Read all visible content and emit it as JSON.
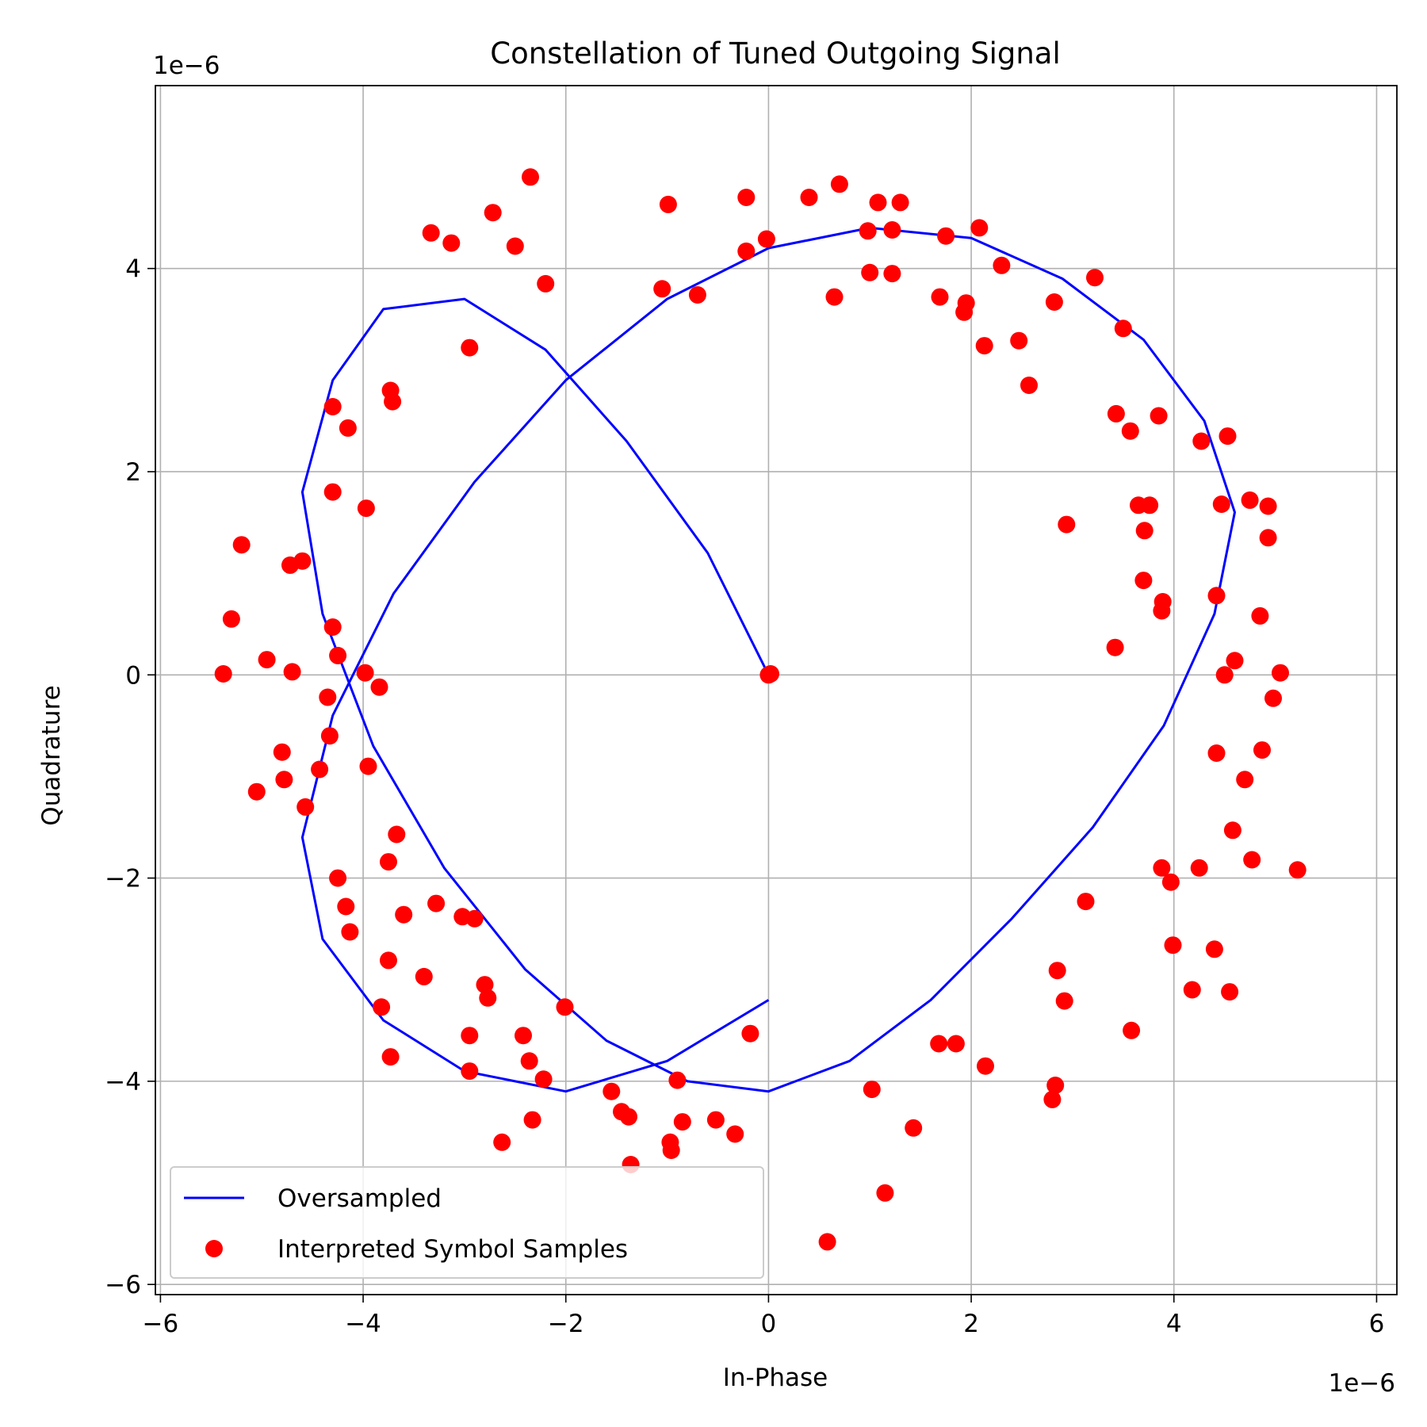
{
  "chart_data": {
    "type": "line",
    "title": "Constellation of Tuned Outgoing Signal",
    "xlabel": "In-Phase",
    "ylabel": "Quadrature",
    "x_scale_label": "1e−6",
    "y_scale_label": "1e−6",
    "xlim": [
      -6.05,
      6.2
    ],
    "ylim": [
      -6.1,
      5.8
    ],
    "x_ticks": [
      -6,
      -4,
      -2,
      0,
      2,
      4,
      6
    ],
    "x_tick_labels": [
      "−6",
      "−4",
      "−2",
      "0",
      "2",
      "4",
      "6"
    ],
    "y_ticks": [
      -6,
      -4,
      -2,
      0,
      2,
      4
    ],
    "y_tick_labels": [
      "−6",
      "−4",
      "−2",
      "0",
      "2",
      "4"
    ],
    "grid": true,
    "legend": {
      "placement": "lower-left"
    },
    "series": [
      {
        "name": "Oversampled",
        "style": "line",
        "color": "#0000ff",
        "note_units": "x and y in units of 1e-6",
        "x": [
          0.0,
          -0.6,
          -1.4,
          -2.2,
          -3.0,
          -3.8,
          -4.3,
          -4.6,
          -4.4,
          -3.9,
          -3.2,
          -2.4,
          -1.6,
          -0.8,
          0.0,
          0.8,
          1.6,
          2.4,
          3.2,
          3.9,
          4.4,
          4.6,
          4.3,
          3.7,
          2.9,
          2.0,
          1.0,
          0.0,
          -1.0,
          -2.0,
          -2.9,
          -3.7,
          -4.3,
          -4.6,
          -4.4,
          -3.8,
          -3.0,
          -2.0,
          -1.0,
          0.0
        ],
        "y": [
          0.0,
          1.2,
          2.3,
          3.2,
          3.7,
          3.6,
          2.9,
          1.8,
          0.6,
          -0.7,
          -1.9,
          -2.9,
          -3.6,
          -4.0,
          -4.1,
          -3.8,
          -3.2,
          -2.4,
          -1.5,
          -0.5,
          0.6,
          1.6,
          2.5,
          3.3,
          3.9,
          4.3,
          4.4,
          4.2,
          3.7,
          2.9,
          1.9,
          0.8,
          -0.4,
          -1.6,
          -2.6,
          -3.4,
          -3.9,
          -4.1,
          -3.8,
          -3.2
        ]
      },
      {
        "name": "Interpreted Symbol Samples",
        "style": "scatter",
        "color": "#ff0000",
        "note_units": "x and y in units of 1e-6",
        "points": [
          [
            -2.35,
            4.9
          ],
          [
            -2.72,
            4.55
          ],
          [
            -3.33,
            4.35
          ],
          [
            -3.13,
            4.25
          ],
          [
            -2.5,
            4.22
          ],
          [
            -2.2,
            3.85
          ],
          [
            -0.99,
            4.63
          ],
          [
            -0.22,
            4.7
          ],
          [
            0.4,
            4.7
          ],
          [
            0.7,
            4.83
          ],
          [
            1.08,
            4.65
          ],
          [
            1.3,
            4.65
          ],
          [
            0.98,
            4.37
          ],
          [
            1.22,
            4.38
          ],
          [
            1.75,
            4.32
          ],
          [
            2.08,
            4.4
          ],
          [
            -0.22,
            4.17
          ],
          [
            -0.02,
            4.29
          ],
          [
            1.0,
            3.96
          ],
          [
            1.22,
            3.95
          ],
          [
            2.3,
            4.03
          ],
          [
            -1.05,
            3.8
          ],
          [
            -0.7,
            3.74
          ],
          [
            0.65,
            3.72
          ],
          [
            1.69,
            3.72
          ],
          [
            1.95,
            3.66
          ],
          [
            1.93,
            3.57
          ],
          [
            2.82,
            3.67
          ],
          [
            3.22,
            3.91
          ],
          [
            3.5,
            3.41
          ],
          [
            -2.95,
            3.22
          ],
          [
            2.13,
            3.24
          ],
          [
            2.47,
            3.29
          ],
          [
            2.57,
            2.85
          ],
          [
            3.43,
            2.57
          ],
          [
            3.57,
            2.4
          ],
          [
            3.85,
            2.55
          ],
          [
            4.27,
            2.3
          ],
          [
            4.53,
            2.35
          ],
          [
            -4.3,
            2.64
          ],
          [
            -3.73,
            2.8
          ],
          [
            -3.71,
            2.69
          ],
          [
            -4.15,
            2.43
          ],
          [
            -4.3,
            1.8
          ],
          [
            -3.97,
            1.64
          ],
          [
            -5.2,
            1.28
          ],
          [
            -4.72,
            1.08
          ],
          [
            -4.6,
            1.12
          ],
          [
            2.94,
            1.48
          ],
          [
            3.65,
            1.67
          ],
          [
            3.76,
            1.67
          ],
          [
            3.71,
            1.42
          ],
          [
            4.47,
            1.68
          ],
          [
            4.75,
            1.72
          ],
          [
            4.93,
            1.66
          ],
          [
            4.93,
            1.35
          ],
          [
            3.7,
            0.93
          ],
          [
            3.89,
            0.72
          ],
          [
            3.88,
            0.63
          ],
          [
            4.42,
            0.78
          ],
          [
            4.85,
            0.58
          ],
          [
            -5.3,
            0.55
          ],
          [
            -4.3,
            0.47
          ],
          [
            -4.95,
            0.15
          ],
          [
            -4.25,
            0.19
          ],
          [
            -5.38,
            0.01
          ],
          [
            -4.7,
            0.03
          ],
          [
            -3.98,
            0.02
          ],
          [
            -3.84,
            -0.12
          ],
          [
            -4.35,
            -0.22
          ],
          [
            0.0,
            0.0
          ],
          [
            0.02,
            0.01
          ],
          [
            3.42,
            0.27
          ],
          [
            4.6,
            0.14
          ],
          [
            4.5,
            0.0
          ],
          [
            5.05,
            0.02
          ],
          [
            4.98,
            -0.23
          ],
          [
            -4.33,
            -0.6
          ],
          [
            -4.8,
            -0.76
          ],
          [
            -4.43,
            -0.93
          ],
          [
            -3.95,
            -0.9
          ],
          [
            -4.78,
            -1.03
          ],
          [
            -5.05,
            -1.15
          ],
          [
            -4.57,
            -1.3
          ],
          [
            4.42,
            -0.77
          ],
          [
            4.87,
            -0.74
          ],
          [
            4.7,
            -1.03
          ],
          [
            4.58,
            -1.53
          ],
          [
            -3.67,
            -1.57
          ],
          [
            -3.75,
            -1.84
          ],
          [
            -4.25,
            -2.0
          ],
          [
            -4.17,
            -2.28
          ],
          [
            -4.13,
            -2.53
          ],
          [
            -3.6,
            -2.36
          ],
          [
            -3.28,
            -2.25
          ],
          [
            -3.02,
            -2.38
          ],
          [
            -2.9,
            -2.4
          ],
          [
            3.88,
            -1.9
          ],
          [
            3.97,
            -2.04
          ],
          [
            4.25,
            -1.9
          ],
          [
            4.77,
            -1.82
          ],
          [
            5.22,
            -1.92
          ],
          [
            3.13,
            -2.23
          ],
          [
            3.99,
            -2.66
          ],
          [
            4.4,
            -2.7
          ],
          [
            -3.75,
            -2.81
          ],
          [
            -3.4,
            -2.97
          ],
          [
            -2.8,
            -3.05
          ],
          [
            -2.77,
            -3.18
          ],
          [
            -3.82,
            -3.27
          ],
          [
            -2.01,
            -3.27
          ],
          [
            2.85,
            -2.91
          ],
          [
            2.92,
            -3.21
          ],
          [
            4.18,
            -3.1
          ],
          [
            4.55,
            -3.12
          ],
          [
            -2.95,
            -3.55
          ],
          [
            -2.42,
            -3.55
          ],
          [
            -0.18,
            -3.53
          ],
          [
            1.68,
            -3.63
          ],
          [
            1.85,
            -3.63
          ],
          [
            3.58,
            -3.5
          ],
          [
            -3.73,
            -3.76
          ],
          [
            -2.36,
            -3.8
          ],
          [
            -2.95,
            -3.9
          ],
          [
            -2.22,
            -3.98
          ],
          [
            2.14,
            -3.85
          ],
          [
            2.83,
            -4.04
          ],
          [
            -0.9,
            -3.99
          ],
          [
            -1.55,
            -4.1
          ],
          [
            1.02,
            -4.08
          ],
          [
            -1.45,
            -4.3
          ],
          [
            -1.38,
            -4.35
          ],
          [
            -0.85,
            -4.4
          ],
          [
            -0.52,
            -4.38
          ],
          [
            -2.33,
            -4.38
          ],
          [
            -0.33,
            -4.52
          ],
          [
            1.43,
            -4.46
          ],
          [
            2.8,
            -4.18
          ],
          [
            -2.63,
            -4.6
          ],
          [
            -0.97,
            -4.6
          ],
          [
            -0.96,
            -4.68
          ],
          [
            -1.36,
            -4.82
          ],
          [
            1.15,
            -5.1
          ],
          [
            0.58,
            -5.58
          ]
        ]
      }
    ]
  }
}
